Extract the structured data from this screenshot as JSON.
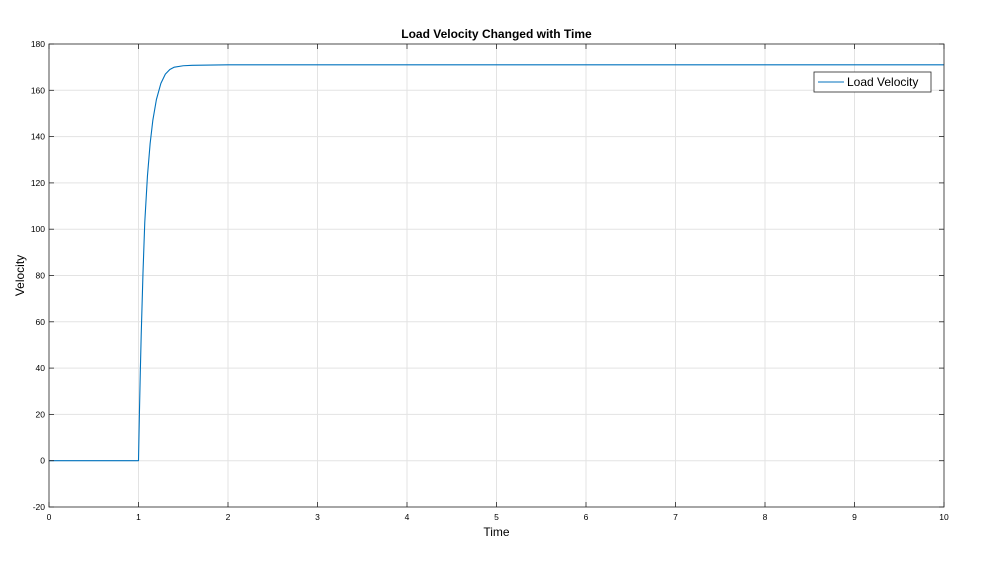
{
  "chart_data": {
    "type": "line",
    "title": "Load Velocity Changed with Time",
    "xlabel": "Time",
    "ylabel": "Velocity",
    "xlim": [
      0,
      10
    ],
    "ylim": [
      -20,
      180
    ],
    "xticks": [
      0,
      1,
      2,
      3,
      4,
      5,
      6,
      7,
      8,
      9,
      10
    ],
    "yticks": [
      -20,
      0,
      20,
      40,
      60,
      80,
      100,
      120,
      140,
      160,
      180
    ],
    "grid": true,
    "legend_position": "top-right",
    "series": [
      {
        "name": "Load Velocity",
        "color": "#0072BD",
        "x": [
          0,
          1,
          1.01,
          1.02,
          1.03,
          1.05,
          1.07,
          1.1,
          1.13,
          1.16,
          1.2,
          1.25,
          1.3,
          1.35,
          1.4,
          1.5,
          1.6,
          1.8,
          2,
          3,
          4,
          5,
          6,
          7,
          8,
          9,
          10
        ],
        "values": [
          0,
          0,
          20,
          38,
          54,
          81,
          103,
          123,
          137,
          147,
          156,
          163,
          167,
          169,
          170,
          170.6,
          170.8,
          170.9,
          171,
          171,
          171,
          171,
          171,
          171,
          171,
          171,
          171
        ]
      }
    ]
  }
}
